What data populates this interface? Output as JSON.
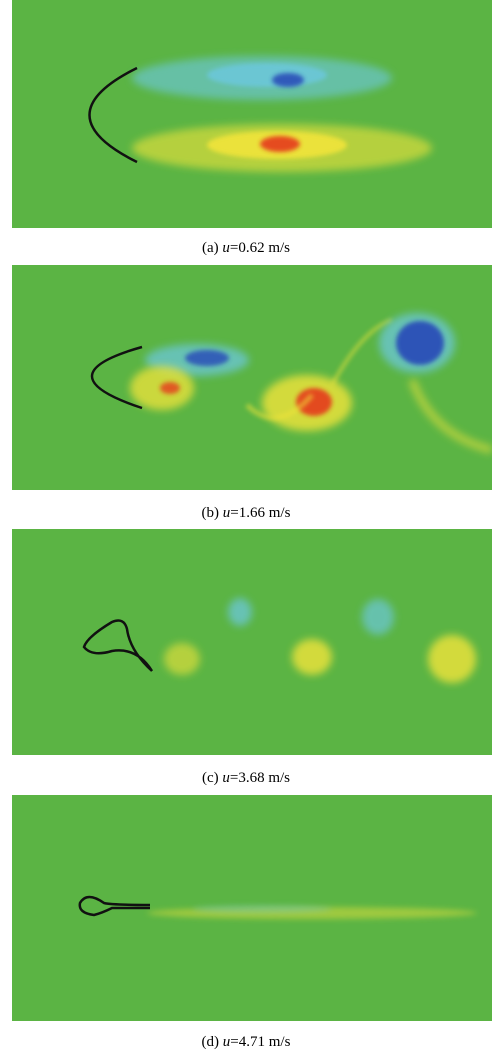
{
  "colors": {
    "background": "#5bb444",
    "cyan": "#6cc7d9",
    "blue": "#2a4fb8",
    "yellow": "#f1e43a",
    "red": "#e53a1f",
    "filament": "#111111"
  },
  "panels": [
    {
      "label": "(a)",
      "var": "u",
      "value": "=0.62 m/s"
    },
    {
      "label": "(b)",
      "var": "u",
      "value": "=1.66 m/s"
    },
    {
      "label": "(c)",
      "var": "u",
      "value": "=3.68 m/s"
    },
    {
      "label": "(d)",
      "var": "u",
      "value": "=4.71 m/s"
    }
  ]
}
